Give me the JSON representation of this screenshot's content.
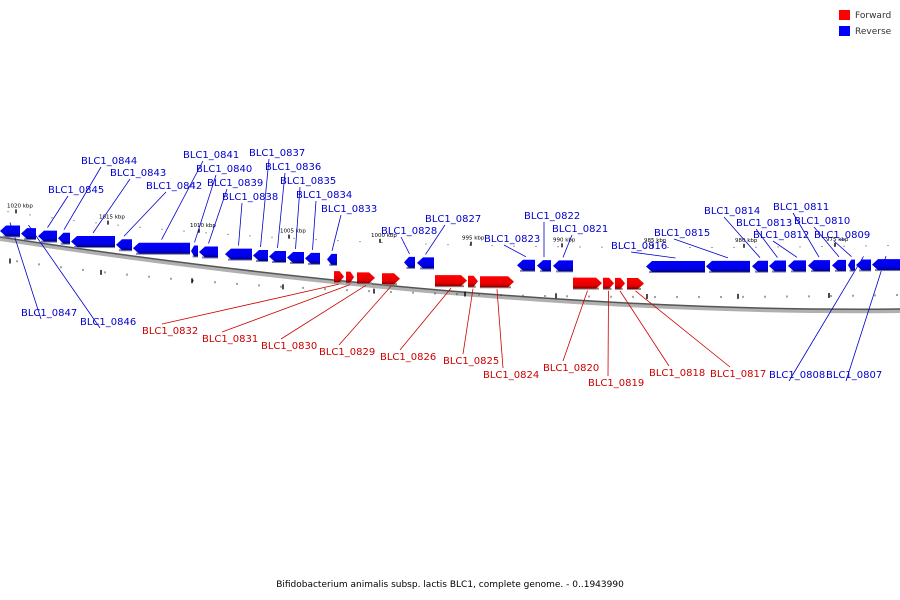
{
  "legend": {
    "forward": {
      "label": "Forward",
      "color": "#ff0000"
    },
    "reverse": {
      "label": "Reverse",
      "color": "#0000ff"
    }
  },
  "caption": "Bifidobacterium animalis subsp. lactis BLC1, complete genome. - 0..1943990",
  "colors": {
    "backbone": "#8a8a8a",
    "forward_fill": "#ff0000",
    "reverse_fill": "#0000ff",
    "forward_label": "#cc0000",
    "reverse_label": "#0000cc"
  },
  "ticks": [
    {
      "label": "1020 kbp"
    },
    {
      "label": "1015 kbp"
    },
    {
      "label": "1010 kbp"
    },
    {
      "label": "1005 kbp"
    },
    {
      "label": "1000 kbp"
    },
    {
      "label": "995 kbp"
    },
    {
      "label": "990 kbp"
    },
    {
      "label": "985 kbp"
    },
    {
      "label": "980 kbp"
    },
    {
      "label": "975 kbp"
    }
  ],
  "genes": [
    {
      "id": "BLC1_0847",
      "strand": "reverse"
    },
    {
      "id": "BLC1_0846",
      "strand": "reverse"
    },
    {
      "id": "BLC1_0845",
      "strand": "reverse"
    },
    {
      "id": "BLC1_0844",
      "strand": "reverse"
    },
    {
      "id": "BLC1_0843",
      "strand": "reverse"
    },
    {
      "id": "BLC1_0842",
      "strand": "reverse"
    },
    {
      "id": "BLC1_0841",
      "strand": "reverse"
    },
    {
      "id": "BLC1_0840",
      "strand": "reverse"
    },
    {
      "id": "BLC1_0839",
      "strand": "reverse"
    },
    {
      "id": "BLC1_0838",
      "strand": "reverse"
    },
    {
      "id": "BLC1_0837",
      "strand": "reverse"
    },
    {
      "id": "BLC1_0836",
      "strand": "reverse"
    },
    {
      "id": "BLC1_0835",
      "strand": "reverse"
    },
    {
      "id": "BLC1_0834",
      "strand": "reverse"
    },
    {
      "id": "BLC1_0833",
      "strand": "reverse"
    },
    {
      "id": "BLC1_0832",
      "strand": "forward"
    },
    {
      "id": "BLC1_0831",
      "strand": "forward"
    },
    {
      "id": "BLC1_0830",
      "strand": "forward"
    },
    {
      "id": "BLC1_0829",
      "strand": "forward"
    },
    {
      "id": "BLC1_0828",
      "strand": "reverse"
    },
    {
      "id": "BLC1_0827",
      "strand": "reverse"
    },
    {
      "id": "BLC1_0826",
      "strand": "forward"
    },
    {
      "id": "BLC1_0825",
      "strand": "forward"
    },
    {
      "id": "BLC1_0824",
      "strand": "forward"
    },
    {
      "id": "BLC1_0823",
      "strand": "reverse"
    },
    {
      "id": "BLC1_0822",
      "strand": "reverse"
    },
    {
      "id": "BLC1_0821",
      "strand": "reverse"
    },
    {
      "id": "BLC1_0820",
      "strand": "forward"
    },
    {
      "id": "BLC1_0819",
      "strand": "forward"
    },
    {
      "id": "BLC1_0818",
      "strand": "forward"
    },
    {
      "id": "BLC1_0817",
      "strand": "forward"
    },
    {
      "id": "BLC1_0816",
      "strand": "reverse"
    },
    {
      "id": "BLC1_0815",
      "strand": "reverse"
    },
    {
      "id": "BLC1_0814",
      "strand": "reverse"
    },
    {
      "id": "BLC1_0813",
      "strand": "reverse"
    },
    {
      "id": "BLC1_0812",
      "strand": "reverse"
    },
    {
      "id": "BLC1_0811",
      "strand": "reverse"
    },
    {
      "id": "BLC1_0810",
      "strand": "reverse"
    },
    {
      "id": "BLC1_0809",
      "strand": "reverse"
    },
    {
      "id": "BLC1_0808",
      "strand": "reverse"
    },
    {
      "id": "BLC1_0807",
      "strand": "reverse"
    }
  ]
}
